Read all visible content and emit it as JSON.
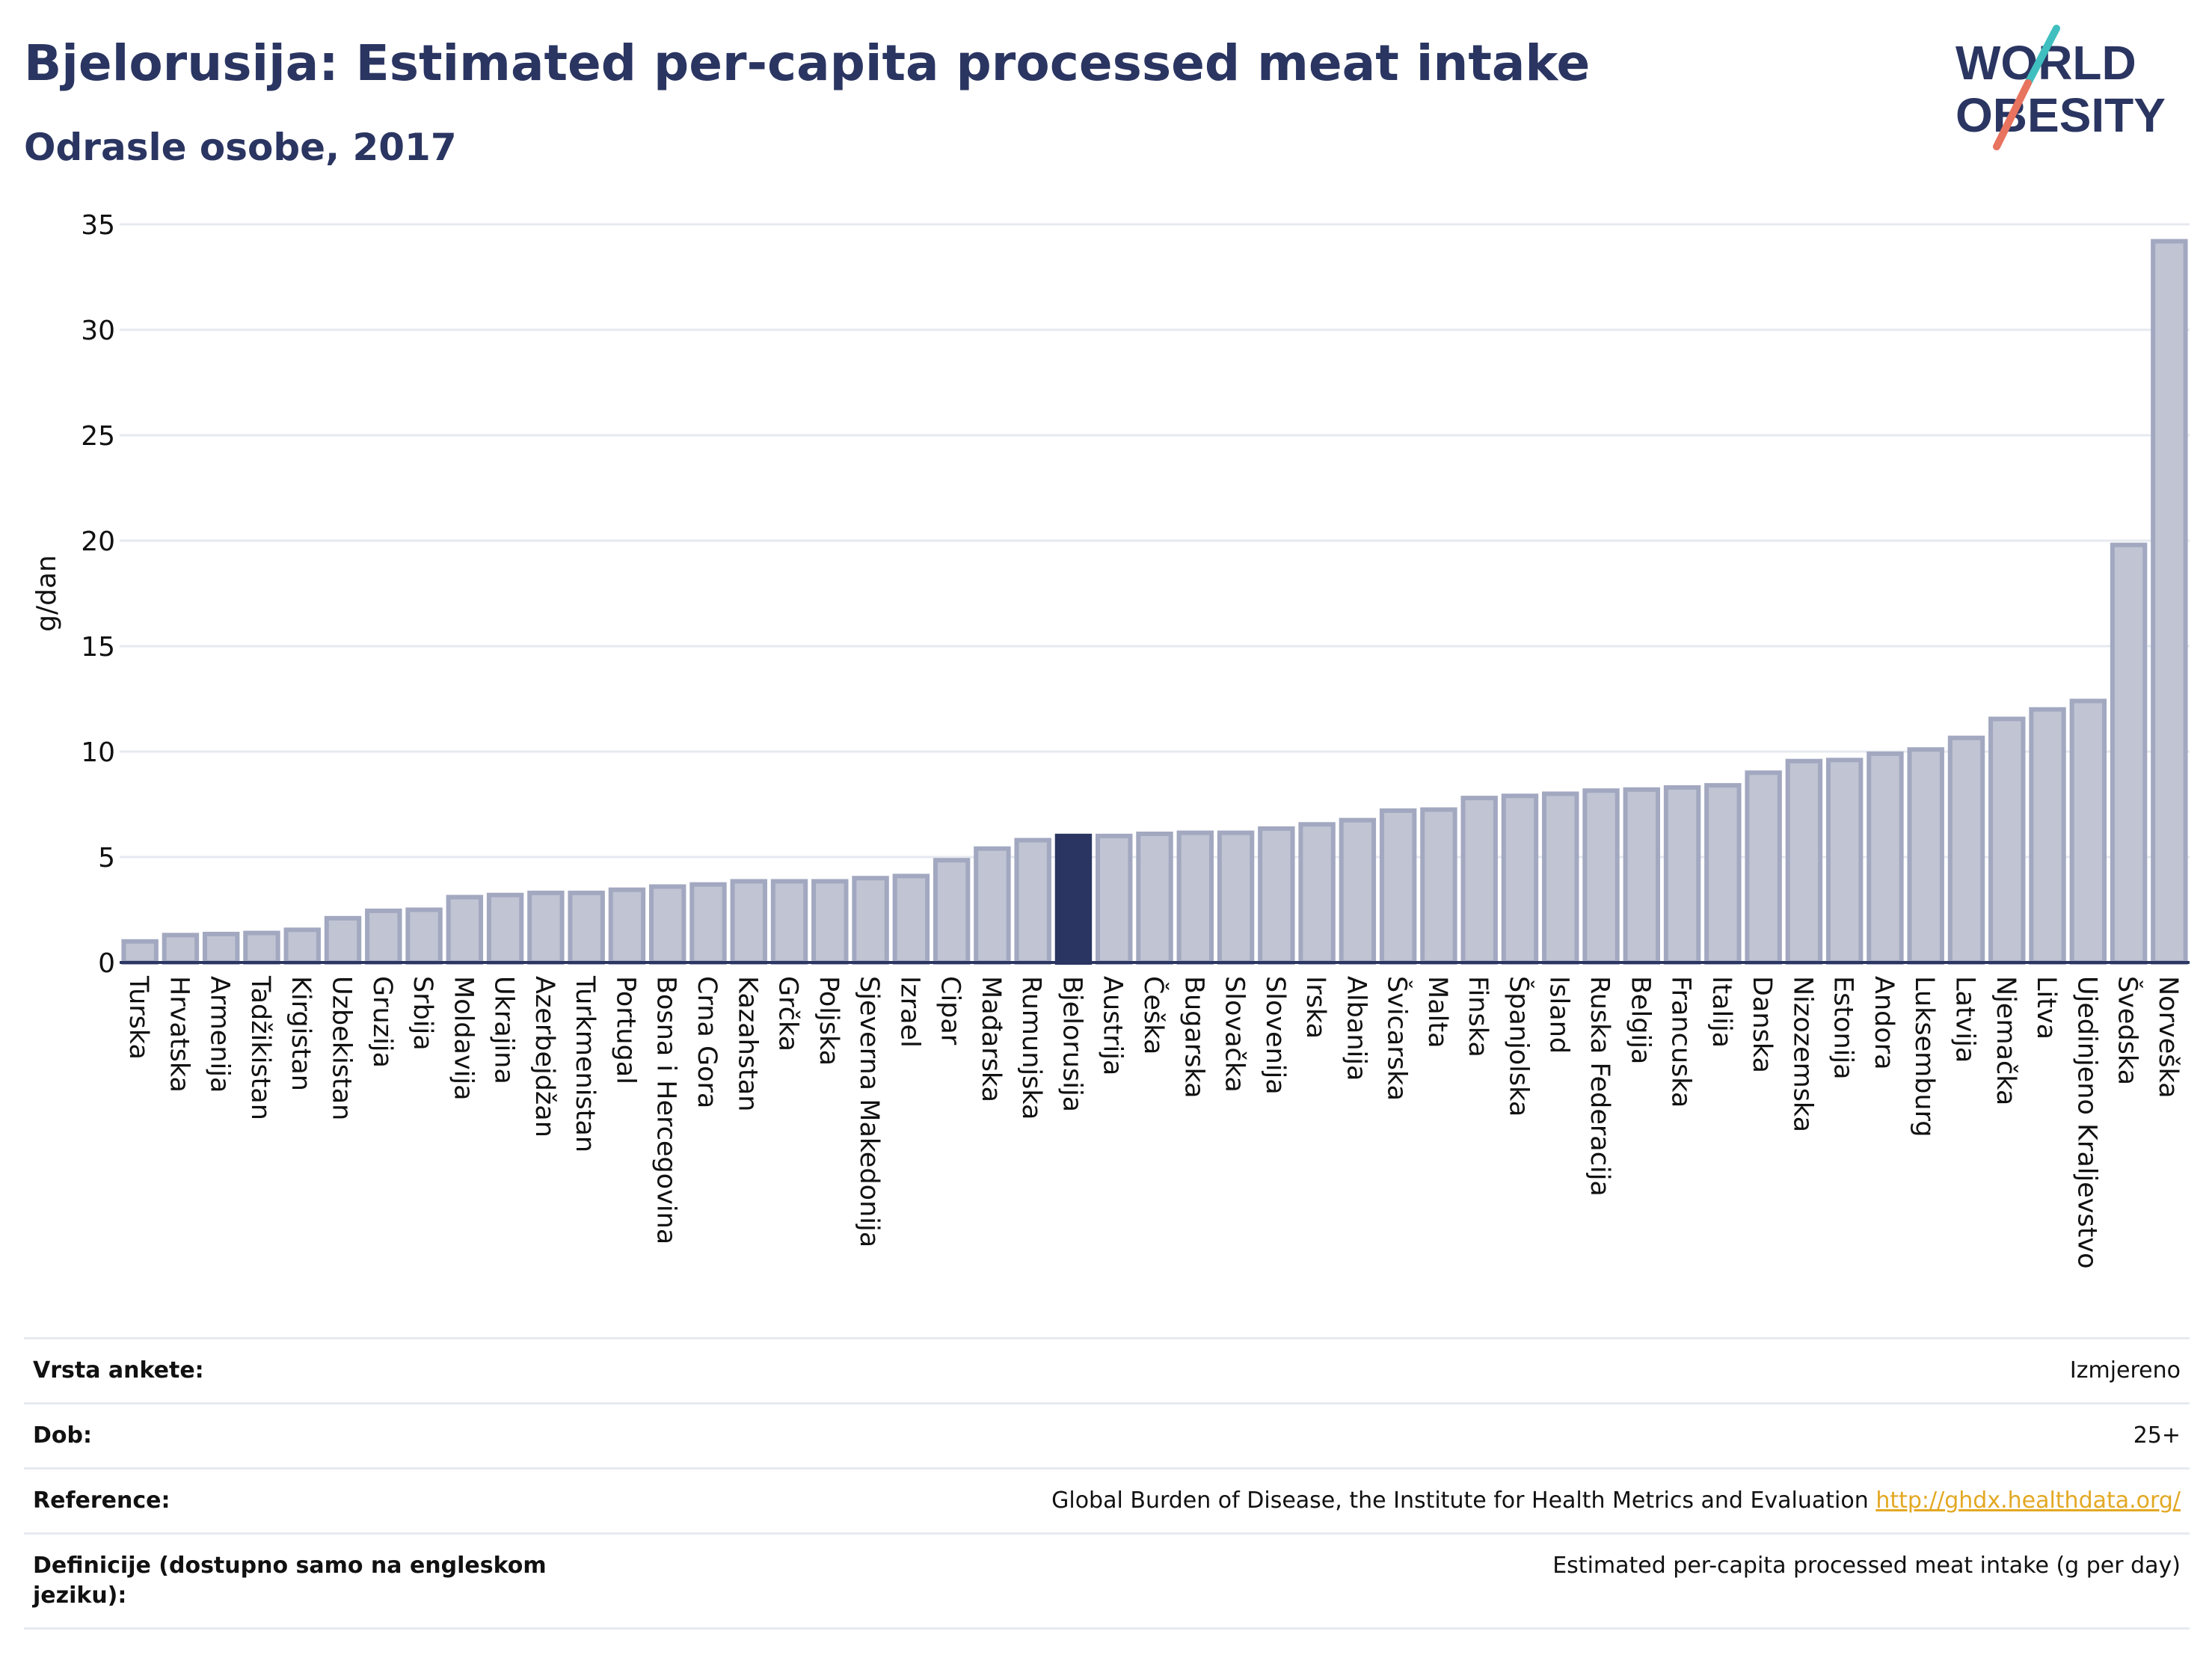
{
  "header": {
    "title": "Bjelorusija: Estimated per-capita processed meat intake",
    "subtitle": "Odrasle osobe, 2017"
  },
  "logo": {
    "line1": "WORLD",
    "line2": "OBESITY",
    "colors": {
      "text": "#2a3561",
      "slash_top": "#3fbfbf",
      "slash_bottom": "#e8735f"
    }
  },
  "colors": {
    "bar_fill": "#c0c4d3",
    "bar_stroke": "#a2a8c0",
    "highlight": "#2a3561",
    "grid": "#e6eaf0",
    "axis_text": "#111111"
  },
  "chart_data": {
    "type": "bar",
    "ylabel": "g/dan",
    "ylim": [
      0,
      35
    ],
    "yticks": [
      0,
      5,
      10,
      15,
      20,
      25,
      30,
      35
    ],
    "grid": true,
    "highlight": "Bjelorusija",
    "categories": [
      "Turska",
      "Hrvatska",
      "Armenija",
      "Tadžikistan",
      "Kirgistan",
      "Uzbekistan",
      "Gruzija",
      "Srbija",
      "Moldavija",
      "Ukrajina",
      "Azerbejdžan",
      "Turkmenistan",
      "Portugal",
      "Bosna i Hercegovina",
      "Crna Gora",
      "Kazahstan",
      "Grčka",
      "Poljska",
      "Sjeverna Makedonija",
      "Izrael",
      "Cipar",
      "Mađarska",
      "Rumunjska",
      "Bjelorusija",
      "Austrija",
      "Češka",
      "Bugarska",
      "Slovačka",
      "Slovenija",
      "Irska",
      "Albanija",
      "Švicarska",
      "Malta",
      "Finska",
      "Španjolska",
      "Island",
      "Ruska Federacija",
      "Belgija",
      "Francuska",
      "Italija",
      "Danska",
      "Nizozemska",
      "Estonija",
      "Andora",
      "Luksemburg",
      "Latvija",
      "Njemačka",
      "Litva",
      "Ujedinjeno Kraljevstvo",
      "Švedska",
      "Norveška"
    ],
    "values": [
      1.0,
      1.3,
      1.35,
      1.4,
      1.55,
      2.1,
      2.45,
      2.5,
      3.1,
      3.2,
      3.3,
      3.3,
      3.45,
      3.6,
      3.7,
      3.85,
      3.85,
      3.85,
      4.0,
      4.1,
      4.85,
      5.4,
      5.8,
      6.0,
      6.0,
      6.1,
      6.15,
      6.15,
      6.35,
      6.55,
      6.75,
      7.2,
      7.25,
      7.8,
      7.9,
      8.0,
      8.15,
      8.2,
      8.3,
      8.4,
      9.0,
      9.55,
      9.6,
      9.9,
      10.1,
      10.65,
      11.55,
      12.0,
      12.4,
      19.8,
      34.2
    ]
  },
  "info": {
    "rows": [
      {
        "key": "Vrsta ankete:",
        "value": "Izmjereno"
      },
      {
        "key": "Dob:",
        "value": "25+"
      },
      {
        "key": "Reference:",
        "value": "Global Burden of Disease, the Institute for Health Metrics and Evaluation",
        "link": "http://ghdx.healthdata.org/"
      },
      {
        "key": "Definicije (dostupno samo na engleskom jeziku):",
        "value": "Estimated per-capita processed meat intake (g per day)"
      }
    ]
  }
}
